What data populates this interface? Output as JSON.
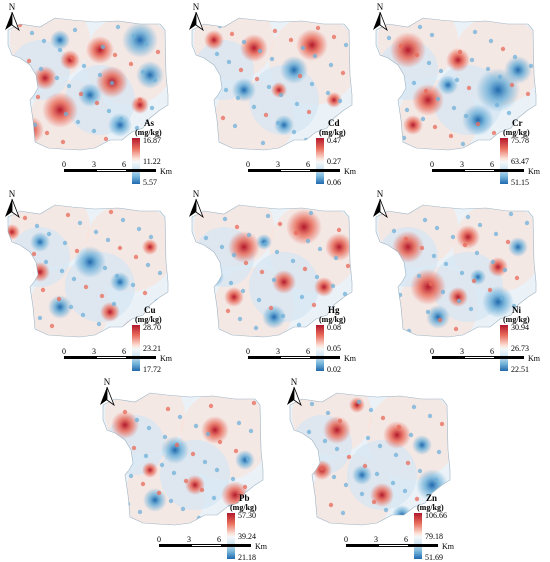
{
  "north_label": "N",
  "scale_bar": {
    "labels": [
      "0",
      "3",
      "6"
    ],
    "unit": "Km"
  },
  "palette": {
    "high": "#b2182b",
    "mid_high": "#e86a59",
    "mid": "#f4f8fb",
    "mid_low": "#6fb0d8",
    "low": "#1f69ae"
  },
  "maps": [
    {
      "element": "As",
      "unit": "(mg/kg)",
      "ticks": [
        "16.87",
        "11.22",
        "5.57"
      ]
    },
    {
      "element": "Cd",
      "unit": "(mg/kg)",
      "ticks": [
        "0.47",
        "0.27",
        "0.06"
      ]
    },
    {
      "element": "Cr",
      "unit": "(mg/kg)",
      "ticks": [
        "75.78",
        "63.47",
        "51.15"
      ]
    },
    {
      "element": "Cu",
      "unit": "(mg/kg)",
      "ticks": [
        "28.70",
        "23.21",
        "17.72"
      ]
    },
    {
      "element": "Hg",
      "unit": "(mg/kg)",
      "ticks": [
        "0.08",
        "0.05",
        "0.02"
      ]
    },
    {
      "element": "Ni",
      "unit": "(mg/kg)",
      "ticks": [
        "30.94",
        "26.73",
        "22.51"
      ]
    },
    {
      "element": "Pb",
      "unit": "(mg/kg)",
      "ticks": [
        "57.30",
        "39.24",
        "21.18"
      ]
    },
    {
      "element": "Zn",
      "unit": "(mg/kg)",
      "ticks": [
        "106.66",
        "79.18",
        "51.69"
      ]
    }
  ]
}
